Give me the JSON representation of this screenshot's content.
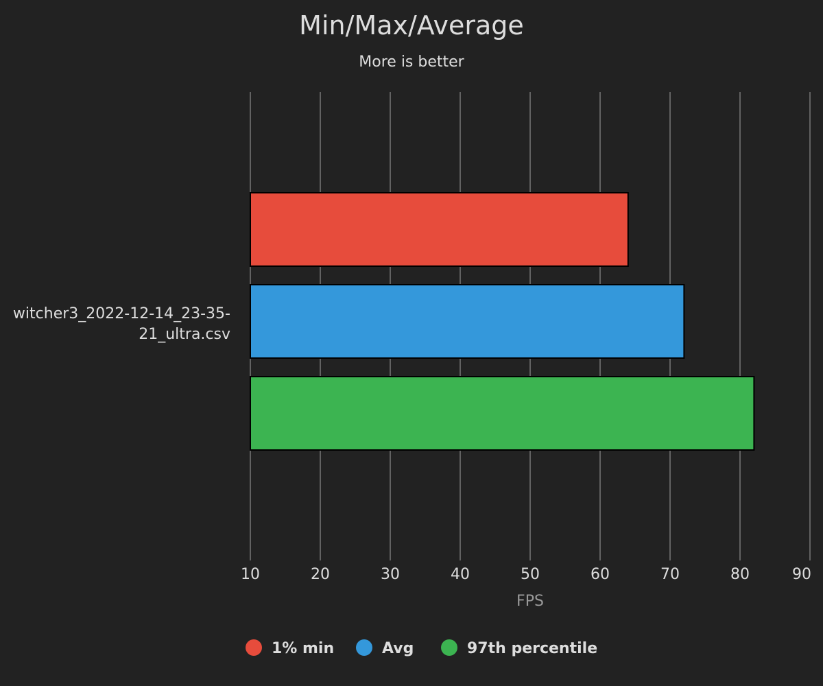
{
  "chart_data": {
    "type": "bar",
    "orientation": "horizontal",
    "title": "Min/Max/Average",
    "subtitle": "More is better",
    "xlabel": "FPS",
    "ylabel": "",
    "xlim": [
      10,
      90
    ],
    "x_ticks": [
      10,
      20,
      30,
      40,
      50,
      60,
      70,
      80,
      90
    ],
    "categories": [
      "witcher3_2022-12-14_23-35-21_ultra.csv"
    ],
    "category_label_lines": [
      "witcher3_2022-12-14_23-35-",
      "21_ultra.csv"
    ],
    "series": [
      {
        "name": "1% min",
        "color": "#e74c3c",
        "values": [
          64
        ]
      },
      {
        "name": "Avg",
        "color": "#3498db",
        "values": [
          72
        ]
      },
      {
        "name": "97th percentile",
        "color": "#3cb451",
        "values": [
          82
        ]
      }
    ],
    "grid": true,
    "legend_position": "bottom-center",
    "background_color": "#222222"
  }
}
